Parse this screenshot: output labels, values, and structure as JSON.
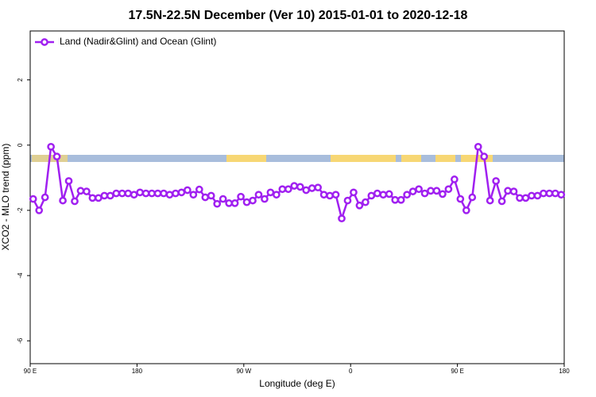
{
  "chart_data": {
    "type": "line",
    "title": "17.5N-22.5N December (Ver 10)   2015-01-01 to 2020-12-18",
    "xlabel": "Longitude (deg E)",
    "ylabel": "XCO2 - MLO trend (ppm)",
    "x": [
      92.5,
      97.5,
      102.5,
      107.5,
      112.5,
      117.5,
      122.5,
      127.5,
      132.5,
      137.5,
      142.5,
      147.5,
      152.5,
      157.5,
      162.5,
      167.5,
      172.5,
      177.5,
      182.5,
      187.5,
      192.5,
      197.5,
      202.5,
      207.5,
      212.5,
      217.5,
      222.5,
      227.5,
      232.5,
      237.5,
      242.5,
      247.5,
      252.5,
      257.5,
      262.5,
      267.5,
      272.5,
      277.5,
      282.5,
      287.5,
      292.5,
      297.5,
      302.5,
      307.5,
      312.5,
      317.5,
      322.5,
      327.5,
      332.5,
      337.5,
      342.5,
      347.5,
      352.5,
      357.5,
      362.5,
      367.5,
      372.5,
      377.5,
      382.5,
      387.5,
      392.5,
      397.5,
      402.5,
      407.5,
      412.5,
      417.5,
      422.5,
      427.5,
      432.5,
      437.5,
      442.5,
      447.5,
      452.5,
      457.5,
      462.5,
      467.5,
      472.5,
      477.5,
      482.5,
      487.5,
      492.5,
      497.5,
      502.5,
      507.5,
      512.5,
      517.5,
      522.5,
      527.5,
      532.5,
      537.5
    ],
    "series": [
      {
        "name": "Land (Nadir&Glint) and Ocean (Glint)",
        "color": "#a020f0",
        "values": [
          -1.65,
          -2.0,
          -1.6,
          -0.05,
          -0.35,
          -1.7,
          -1.1,
          -1.72,
          -1.4,
          -1.42,
          -1.62,
          -1.62,
          -1.55,
          -1.55,
          -1.48,
          -1.48,
          -1.48,
          -1.52,
          -1.45,
          -1.48,
          -1.48,
          -1.48,
          -1.48,
          -1.52,
          -1.48,
          -1.45,
          -1.38,
          -1.52,
          -1.36,
          -1.6,
          -1.55,
          -1.8,
          -1.65,
          -1.78,
          -1.78,
          -1.58,
          -1.75,
          -1.7,
          -1.52,
          -1.65,
          -1.45,
          -1.52,
          -1.35,
          -1.35,
          -1.25,
          -1.28,
          -1.38,
          -1.32,
          -1.3,
          -1.52,
          -1.55,
          -1.52,
          -2.25,
          -1.7,
          -1.45,
          -1.85,
          -1.75,
          -1.55,
          -1.48,
          -1.52,
          -1.5,
          -1.68,
          -1.68,
          -1.52,
          -1.42,
          -1.35,
          -1.48,
          -1.4,
          -1.4,
          -1.5,
          -1.35,
          -1.05,
          -1.65,
          -2.0,
          -1.6,
          -0.05,
          -0.35,
          -1.7,
          -1.1,
          -1.72,
          -1.4,
          -1.42,
          -1.62,
          -1.62,
          -1.55,
          -1.55,
          -1.48,
          -1.48,
          -1.48,
          -1.52
        ]
      }
    ],
    "xlim": [
      90,
      540
    ],
    "xticks": [
      {
        "value": 90,
        "label": "90 E"
      },
      180,
      {
        "value": 270,
        "label": "90 W"
      },
      {
        "value": 360,
        "label": "0"
      },
      {
        "value": 450,
        "label": "90 E"
      },
      {
        "value": 540,
        "label": "180"
      }
    ],
    "ylim": [
      -6.7,
      3.5
    ],
    "yticks": [
      -6,
      -4,
      -2,
      0,
      2
    ],
    "legend": "topleft"
  }
}
